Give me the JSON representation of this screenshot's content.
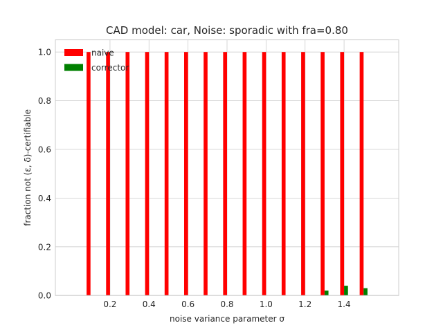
{
  "chart_data": {
    "type": "bar",
    "title": "CAD model: car, Noise: sporadic with fra=0.80",
    "xlabel": "noise variance parameter σ",
    "ylabel": "fraction not (ε, δ)-certifiable",
    "x": [
      0.1,
      0.2,
      0.3,
      0.4,
      0.5,
      0.6,
      0.7,
      0.8,
      0.9,
      1.0,
      1.1,
      1.2,
      1.3,
      1.4,
      1.5
    ],
    "xlim": [
      -0.08,
      1.68
    ],
    "ylim": [
      0.0,
      1.05
    ],
    "xticks": [
      "0.2",
      "0.4",
      "0.6",
      "0.8",
      "1.0",
      "1.2",
      "1.4"
    ],
    "xtick_values": [
      0.2,
      0.4,
      0.6,
      0.8,
      1.0,
      1.2,
      1.4
    ],
    "yticks": [
      "0.0",
      "0.2",
      "0.4",
      "0.6",
      "0.8",
      "1.0"
    ],
    "ytick_values": [
      0.0,
      0.2,
      0.4,
      0.6,
      0.8,
      1.0
    ],
    "grid": true,
    "legend_position": "top-left",
    "series": [
      {
        "name": "naive",
        "color": "#ff0000",
        "values": [
          1,
          1,
          1,
          1,
          1,
          1,
          1,
          1,
          1,
          1,
          1,
          1,
          1,
          1,
          1
        ]
      },
      {
        "name": "corrector",
        "color": "#008000",
        "values": [
          0,
          0,
          0,
          0,
          0,
          0,
          0,
          0,
          0,
          0,
          0,
          0,
          0.02,
          0.04,
          0.03
        ]
      }
    ]
  }
}
